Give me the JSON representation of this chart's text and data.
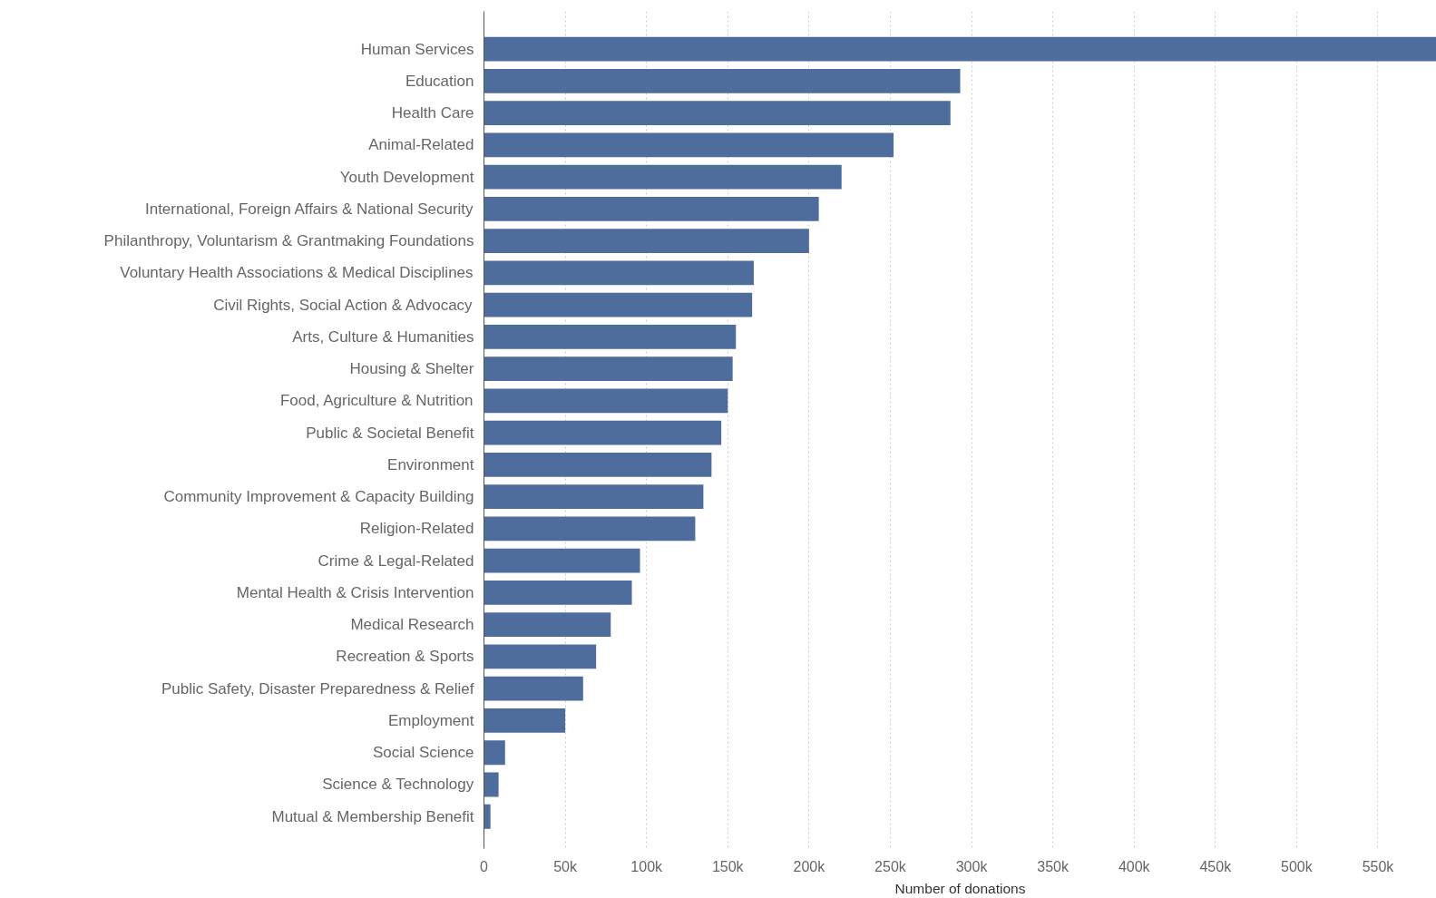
{
  "chart_data": {
    "type": "bar",
    "orientation": "horizontal",
    "xlabel": "Number of donations",
    "categories": [
      "Human Services",
      "Education",
      "Health Care",
      "Animal-Related",
      "Youth Development",
      "International, Foreign Affairs & National Security",
      "Philanthropy, Voluntarism & Grantmaking Foundations",
      "Voluntary Health Associations & Medical Disciplines",
      "Civil Rights, Social Action & Advocacy",
      "Arts, Culture & Humanities",
      "Housing & Shelter",
      "Food, Agriculture & Nutrition",
      "Public & Societal Benefit",
      "Environment",
      "Community Improvement & Capacity Building",
      "Religion-Related",
      "Crime & Legal-Related",
      "Mental Health & Crisis Intervention",
      "Medical Research",
      "Recreation & Sports",
      "Public Safety, Disaster Preparedness & Relief",
      "Employment",
      "Social Science",
      "Science & Technology",
      "Mutual & Membership Benefit"
    ],
    "values": [
      586000,
      293000,
      287000,
      252000,
      220000,
      206000,
      200000,
      166000,
      165000,
      155000,
      153000,
      150000,
      146000,
      140000,
      135000,
      130000,
      96000,
      91000,
      78000,
      69000,
      61000,
      50000,
      13000,
      9000,
      4000
    ],
    "color": "#4f6d9c",
    "xlim": [
      0,
      586000
    ],
    "xticks": [
      {
        "value": 0,
        "label": "0"
      },
      {
        "value": 50000,
        "label": "50k"
      },
      {
        "value": 100000,
        "label": "100k"
      },
      {
        "value": 150000,
        "label": "150k"
      },
      {
        "value": 200000,
        "label": "200k"
      },
      {
        "value": 250000,
        "label": "250k"
      },
      {
        "value": 300000,
        "label": "300k"
      },
      {
        "value": 350000,
        "label": "350k"
      },
      {
        "value": 400000,
        "label": "400k"
      },
      {
        "value": 450000,
        "label": "450k"
      },
      {
        "value": 500000,
        "label": "500k"
      },
      {
        "value": 550000,
        "label": "550k"
      }
    ],
    "grid": "x"
  }
}
